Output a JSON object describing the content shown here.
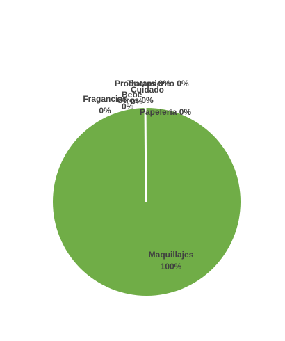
{
  "chart_data": {
    "type": "pie",
    "slices": [
      {
        "label": "Maquillajes",
        "value": 100,
        "pct_label": "100%",
        "color": "#70ad47"
      },
      {
        "label": "Papelería",
        "value": 0,
        "pct_label": "0%",
        "color": "#f2f2f2"
      },
      {
        "label": "Fragancias",
        "value": 0,
        "pct_label": "0%",
        "color": "#f2f2f2"
      },
      {
        "label": "Tratamiento",
        "value": 0,
        "pct_label": "0%",
        "color": "#f2f2f2"
      },
      {
        "label": "Bebé",
        "value": 0,
        "pct_label": "0%",
        "color": "#f2f2f2"
      },
      {
        "label": "Cuidado",
        "value": 0,
        "pct_label": "0%",
        "color": "#f2f2f2"
      },
      {
        "label": "Productos",
        "value": 0,
        "pct_label": "0%",
        "color": "#f2f2f2"
      },
      {
        "label": "Otros",
        "value": 0,
        "pct_label": "0%",
        "color": "#f2f2f2"
      }
    ],
    "title": "",
    "legend": "none",
    "label_color": "#404040",
    "separator_color": "#ffffff"
  }
}
